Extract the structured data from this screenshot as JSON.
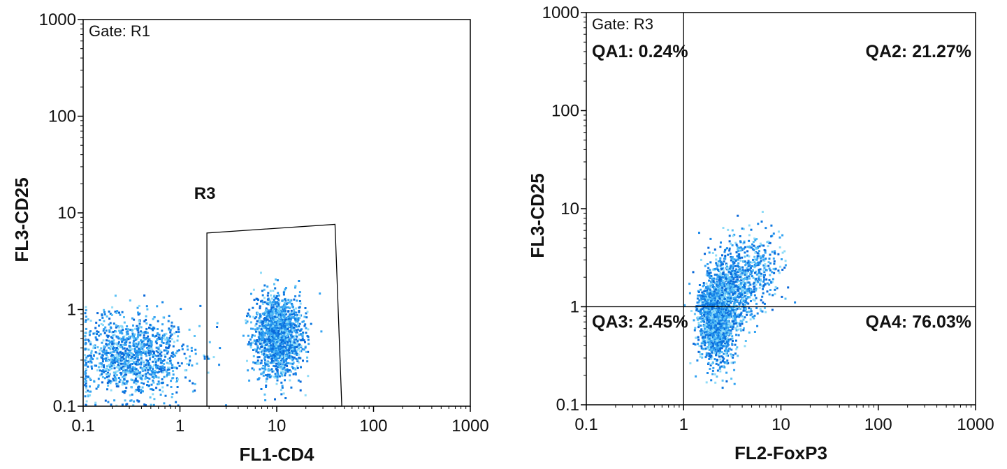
{
  "chart_data": [
    {
      "type": "scatter",
      "title": "",
      "xlabel": "FL1-CD4",
      "ylabel": "FL3-CD25",
      "xscale": "log",
      "yscale": "log",
      "xlim": [
        0.1,
        1000
      ],
      "ylim": [
        0.1,
        1000
      ],
      "xticks": [
        "0.1",
        "1",
        "10",
        "100",
        "1000"
      ],
      "yticks": [
        "0.1",
        "1",
        "10",
        "100",
        "1000"
      ],
      "grid": false,
      "gate_label": "Gate: R1",
      "region": {
        "name": "R3",
        "label_at": [
          1.4,
          14
        ],
        "polygon": [
          [
            1.9,
            0.1
          ],
          [
            1.9,
            6.2
          ],
          [
            40,
            7.6
          ],
          [
            47,
            0.1
          ]
        ]
      },
      "clusters": [
        {
          "center": [
            0.32,
            0.33
          ],
          "spread": [
            0.28,
            0.22
          ],
          "count": 1200
        },
        {
          "center": [
            10,
            0.55
          ],
          "spread": [
            0.12,
            0.2
          ],
          "count": 1700
        }
      ]
    },
    {
      "type": "scatter",
      "title": "",
      "xlabel": "FL2-FoxP3",
      "ylabel": "FL3-CD25",
      "xscale": "log",
      "yscale": "log",
      "xlim": [
        0.1,
        1000
      ],
      "ylim": [
        0.1,
        1000
      ],
      "xticks": [
        "0.1",
        "1",
        "10",
        "100",
        "1000"
      ],
      "yticks": [
        "0.1",
        "1",
        "10",
        "100",
        "1000"
      ],
      "grid": false,
      "gate_label": "Gate: R3",
      "quadrant_divider": {
        "x": 1,
        "y": 1
      },
      "quadrants": [
        {
          "name": "QA1",
          "label": "QA1: 0.24%",
          "percent": 0.24,
          "position": "top-left"
        },
        {
          "name": "QA2",
          "label": "QA2: 21.27%",
          "percent": 21.27,
          "position": "top-right"
        },
        {
          "name": "QA3",
          "label": "QA3: 2.45%",
          "percent": 2.45,
          "position": "bottom-left"
        },
        {
          "name": "QA4",
          "label": "QA4: 76.03%",
          "percent": 76.03,
          "position": "bottom-right"
        }
      ],
      "clusters": [
        {
          "center": [
            2.1,
            0.75
          ],
          "spread": [
            0.09,
            0.22
          ],
          "count": 1600
        },
        {
          "center": [
            3.2,
            1.6
          ],
          "spread": [
            0.13,
            0.2
          ],
          "count": 700
        },
        {
          "center": [
            5.5,
            2.8
          ],
          "spread": [
            0.14,
            0.18
          ],
          "count": 250
        }
      ]
    }
  ]
}
